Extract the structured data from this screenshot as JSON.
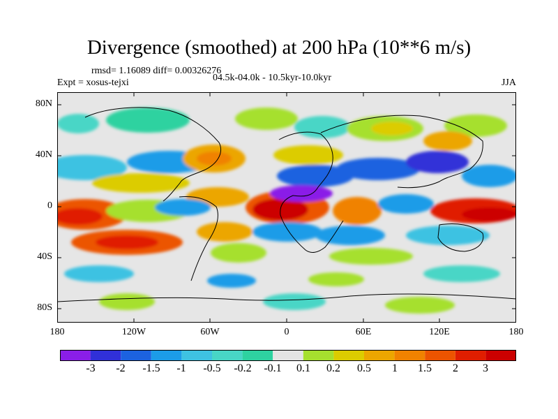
{
  "header": {
    "title": "Divergence (smoothed) at 200 hPa (10**6 m/s)",
    "stats": "rmsd= 1.16089 diff= 0.00326276",
    "experiment": "Expt = xosus-tejxi",
    "period": "04.5k-04.0k - 10.5kyr-10.0kyr",
    "season": "JJA"
  },
  "axes": {
    "lat_labels": [
      "80N",
      "40N",
      "0",
      "40S",
      "80S"
    ],
    "lon_labels": [
      "180",
      "120W",
      "60W",
      "0",
      "60E",
      "120E",
      "180"
    ],
    "lat_values": [
      80,
      40,
      0,
      -40,
      -80
    ],
    "lon_values": [
      -180,
      -120,
      -60,
      0,
      60,
      120,
      180
    ]
  },
  "colorbar": {
    "labels": [
      "-3",
      "-2",
      "-1.5",
      "-1",
      "-0.5",
      "-0.2",
      "-0.1",
      "0.1",
      "0.2",
      "0.5",
      "1",
      "1.5",
      "2",
      "3"
    ],
    "colors": [
      "#8a1ee8",
      "#3030d8",
      "#1c62e0",
      "#1c9ce8",
      "#3ec2e2",
      "#48d6c6",
      "#2ed2a0",
      "#e4e4e4",
      "#a6e02e",
      "#dccc00",
      "#eca600",
      "#f08200",
      "#ec5400",
      "#e01e00",
      "#cc0000"
    ]
  },
  "map_colors": {
    "background": "#e6e6e6",
    "coast": "#000000"
  }
}
